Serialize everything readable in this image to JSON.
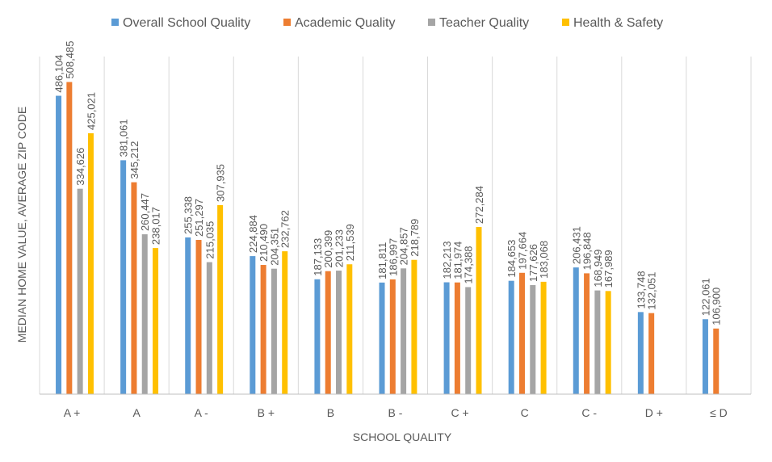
{
  "chart_data": {
    "type": "bar",
    "title": "",
    "xlabel": "SCHOOL QUALITY",
    "ylabel": "MEDIAN HOME VALUE, AVERAGE ZIP CODE",
    "ylim": [
      0,
      550000
    ],
    "grid": "vertical category separators",
    "legend": "top",
    "categories": [
      "A +",
      "A",
      "A -",
      "B +",
      "B",
      "B -",
      "C +",
      "C",
      "C -",
      "D +",
      "≤ D"
    ],
    "series": [
      {
        "name": "Overall School Quality",
        "color": "#5B9BD5",
        "values": [
          486104,
          381061,
          255338,
          224884,
          187133,
          181811,
          182213,
          184653,
          206431,
          133748,
          122061
        ],
        "labels": [
          "486,104",
          "381,061",
          "255,338",
          "224,884",
          "187,133",
          "181,811",
          "182,213",
          "184,653",
          "206,431",
          "133,748",
          "122,061"
        ]
      },
      {
        "name": "Academic Quality",
        "color": "#ED7D31",
        "values": [
          508485,
          345212,
          251297,
          210490,
          200399,
          186997,
          181974,
          197664,
          196848,
          132051,
          106900
        ],
        "labels": [
          "508,485",
          "345,212",
          "251,297",
          "210,490",
          "200,399",
          "186,997",
          "181,974",
          "197,664",
          "196,848",
          "132,051",
          "106,900"
        ]
      },
      {
        "name": "Teacher Quality",
        "color": "#A5A5A5",
        "values": [
          334626,
          260447,
          215035,
          204351,
          201233,
          204857,
          174388,
          177626,
          168949,
          null,
          null
        ],
        "labels": [
          "334,626",
          "260,447",
          "215,035",
          "204,351",
          "201,233",
          "204,857",
          "174,388",
          "177,626",
          "168,949",
          "",
          ""
        ]
      },
      {
        "name": "Health & Safety",
        "color": "#FFC000",
        "values": [
          425021,
          238017,
          307935,
          232762,
          211539,
          218789,
          272284,
          183068,
          167989,
          null,
          null
        ],
        "labels": [
          "425,021",
          "238,017",
          "307,935",
          "232,762",
          "211,539",
          "218,789",
          "272,284",
          "183,068",
          "167,989",
          "",
          ""
        ]
      }
    ]
  }
}
